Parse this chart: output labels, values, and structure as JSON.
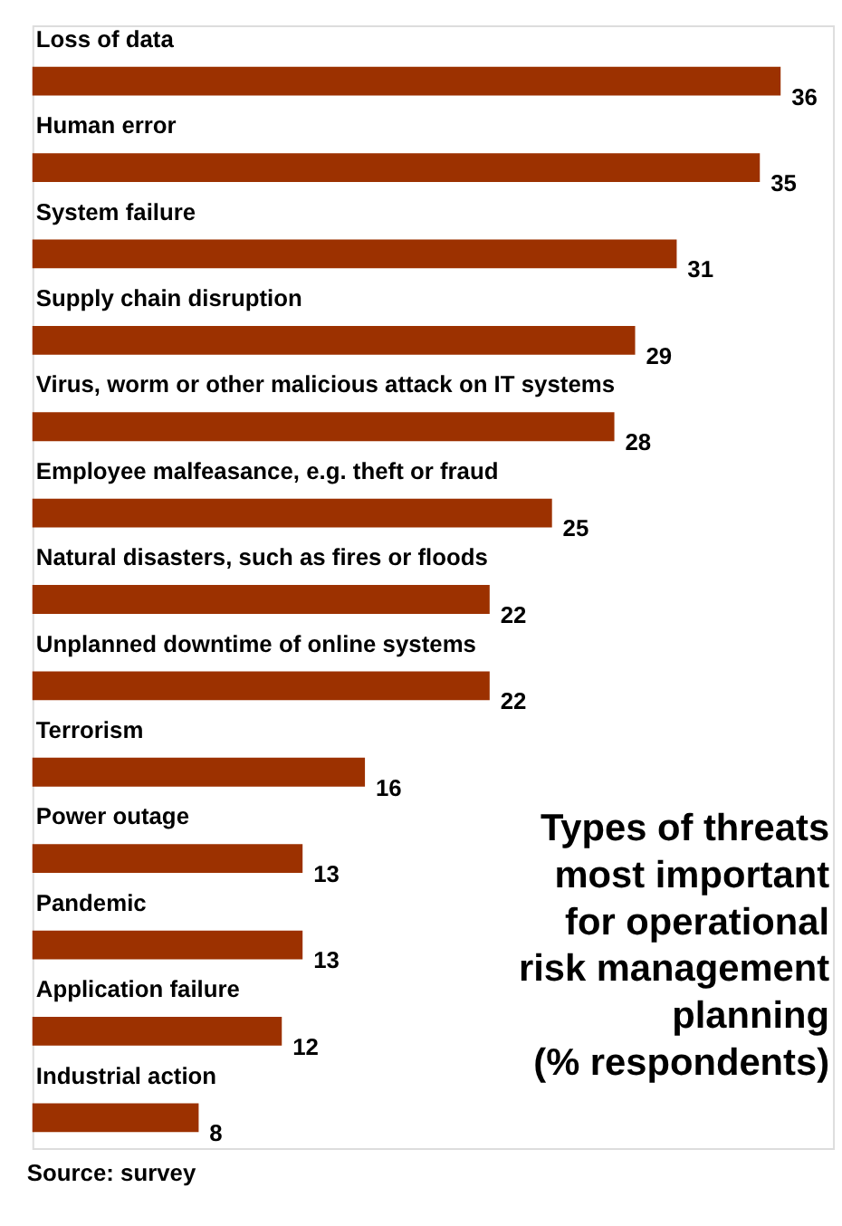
{
  "chart_data": {
    "type": "bar",
    "orientation": "horizontal",
    "title": "Types of threats most important for operational risk management planning (% respondents)",
    "categories": [
      "Loss of data",
      "Human error",
      "System failure",
      "Supply chain disruption",
      "Virus, worm or other malicious attack on IT systems",
      "Employee malfeasance, e.g. theft or fraud",
      "Natural disasters, such as fires or floods",
      "Unplanned downtime of online systems",
      "Terrorism",
      "Power outage",
      "Pandemic",
      "Application failure",
      "Industrial action"
    ],
    "values": [
      36,
      35,
      31,
      29,
      28,
      25,
      22,
      22,
      16,
      13,
      13,
      12,
      8
    ],
    "color": "#9c3100",
    "data_labels": true,
    "annotations": [
      "Source: survey"
    ]
  }
}
